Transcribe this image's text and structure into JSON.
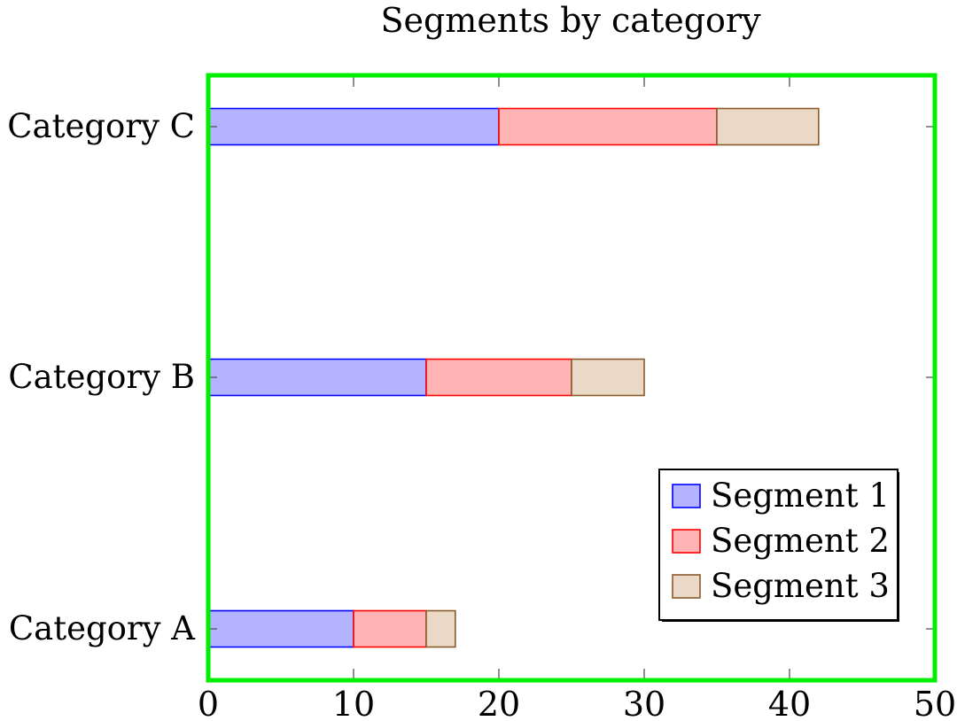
{
  "chart_data": {
    "type": "bar",
    "orientation": "horizontal",
    "stacked": true,
    "title": "Segments by category",
    "xlabel": "",
    "ylabel": "",
    "categories": [
      "Category A",
      "Category B",
      "Category C"
    ],
    "series": [
      {
        "name": "Segment 1",
        "values": [
          10,
          15,
          20
        ],
        "fill": "#b3b3ff",
        "stroke": "#0000ff"
      },
      {
        "name": "Segment 2",
        "values": [
          5,
          10,
          15
        ],
        "fill": "#ffb3b3",
        "stroke": "#ff0000"
      },
      {
        "name": "Segment 3",
        "values": [
          2,
          5,
          7
        ],
        "fill": "#ead9c6",
        "stroke": "#8b5a2b"
      }
    ],
    "xlim": [
      0,
      50
    ],
    "xticks": [
      0,
      10,
      20,
      30,
      40,
      50
    ],
    "grid": false,
    "legend_position": "bottom-right",
    "frame_color": "#00ee00"
  }
}
